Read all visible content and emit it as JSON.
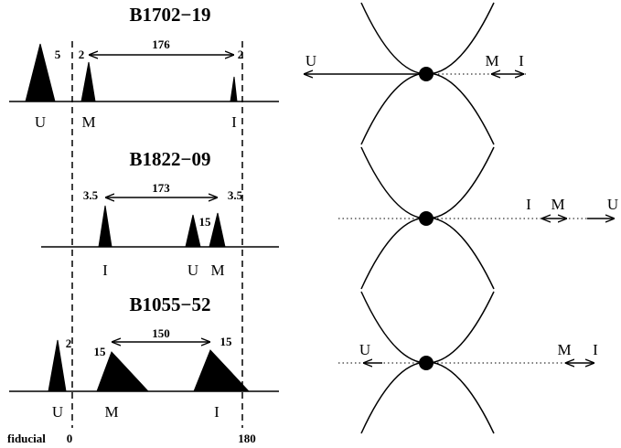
{
  "panels": [
    {
      "title": "B1702−19",
      "separation": 176,
      "pulses": [
        {
          "label": "U",
          "width": 5
        },
        {
          "label": "M",
          "width": 2
        },
        {
          "label": "I",
          "width": 2
        }
      ],
      "geometry": [
        "U",
        "M",
        "I"
      ]
    },
    {
      "title": "B1822−09",
      "separation": 173,
      "pulses": [
        {
          "label": "I",
          "width": 3.5
        },
        {
          "label": "U",
          "width": 15
        },
        {
          "label": "M",
          "width": 3.5
        }
      ],
      "geometry": [
        "I",
        "M",
        "U"
      ]
    },
    {
      "title": "B1055−52",
      "separation": 150,
      "pulses": [
        {
          "label": "U",
          "width": 2
        },
        {
          "label": "M",
          "width": 15
        },
        {
          "label": "I",
          "width": 15
        }
      ],
      "geometry": [
        "U",
        "M",
        "I"
      ]
    }
  ],
  "axis": {
    "left": "fiducial",
    "zero": 0,
    "end": 180
  }
}
